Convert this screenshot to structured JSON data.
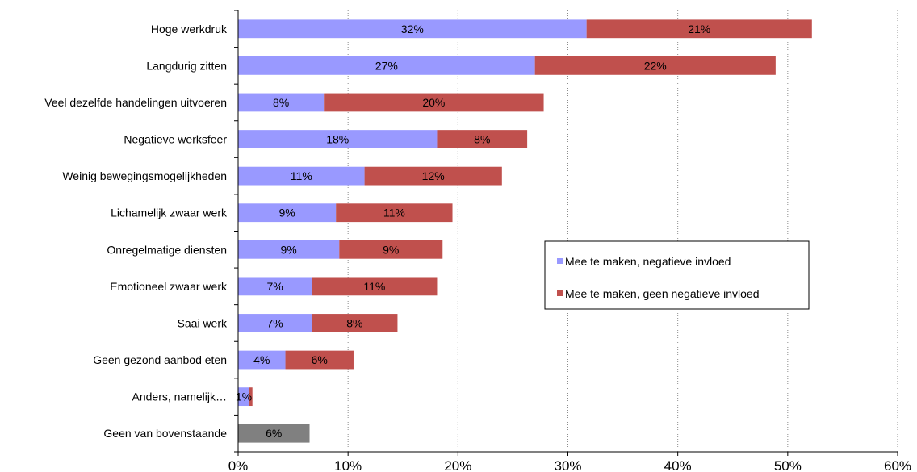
{
  "chart_data": {
    "type": "bar",
    "orientation": "horizontal",
    "stacked": true,
    "title": "",
    "xlabel": "",
    "ylabel": "",
    "xlim": [
      0,
      60
    ],
    "x_ticks": [
      "0%",
      "10%",
      "20%",
      "30%",
      "40%",
      "50%",
      "60%"
    ],
    "grid": "vertical-dashed",
    "legend_position": "center-right",
    "categories": [
      "Hoge werkdruk",
      "Langdurig zitten",
      "Veel dezelfde handelingen uitvoeren",
      "Negatieve werksfeer",
      "Weinig bewegingsmogelijkheden",
      "Lichamelijk zwaar werk",
      "Onregelmatige diensten",
      "Emotioneel zwaar werk",
      "Saai werk",
      "Geen gezond aanbod eten",
      "Anders, namelijk…",
      "Geen van bovenstaande"
    ],
    "series": [
      {
        "name": "Mee te maken, negatieve invloed",
        "color": "#9999ff",
        "values": [
          31.7,
          27.0,
          7.8,
          18.1,
          11.5,
          8.9,
          9.2,
          6.7,
          6.7,
          4.3,
          1.0,
          null
        ],
        "labels": [
          "32%",
          "27%",
          "8%",
          "18%",
          "11%",
          "9%",
          "9%",
          "7%",
          "7%",
          "4%",
          "1%",
          ""
        ]
      },
      {
        "name": "Mee te maken, geen negatieve invloed",
        "color": "#c0504d",
        "values": [
          20.5,
          21.9,
          20.0,
          8.2,
          12.5,
          10.6,
          9.4,
          11.4,
          7.8,
          6.2,
          0.3,
          null
        ],
        "labels": [
          "21%",
          "22%",
          "20%",
          "8%",
          "12%",
          "11%",
          "9%",
          "11%",
          "8%",
          "6%",
          "",
          ""
        ]
      },
      {
        "color": "#808080",
        "values": [
          null,
          null,
          null,
          null,
          null,
          null,
          null,
          null,
          null,
          null,
          null,
          6.5
        ],
        "labels": [
          "",
          "",
          "",
          "",
          "",
          "",
          "",
          "",
          "",
          "",
          "",
          "6%"
        ]
      }
    ]
  }
}
